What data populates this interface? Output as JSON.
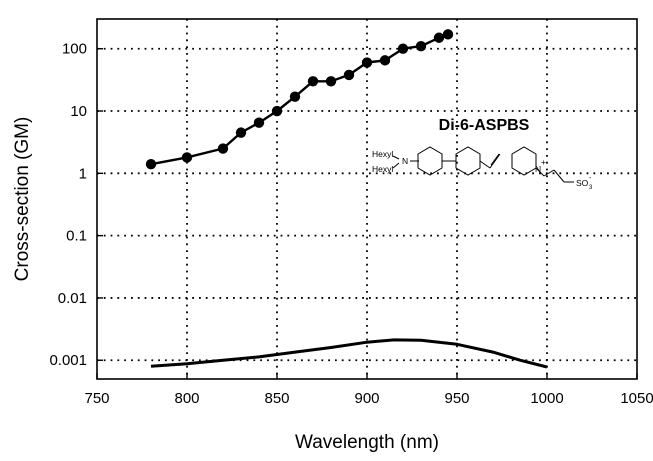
{
  "chart_data": {
    "type": "line",
    "xlabel": "Wavelength (nm)",
    "ylabel": "Cross-section (GM)",
    "xlim": [
      750,
      1050
    ],
    "ylim": [
      0.0005,
      300
    ],
    "yscale": "log",
    "grid": true,
    "x_ticks": [
      750,
      800,
      850,
      900,
      950,
      1000,
      1050
    ],
    "y_ticks": [
      0.001,
      0.01,
      0.1,
      1,
      10,
      100
    ],
    "x_tick_labels": [
      "750",
      "800",
      "850",
      "900",
      "950",
      "1000",
      "1050"
    ],
    "y_tick_labels": [
      "0.001",
      "0.01",
      "0.1",
      "1",
      "10",
      "100"
    ],
    "annotation": "Di-6-ASPBS",
    "molecule_labels": {
      "hexyl_top": "Hexyl",
      "hexyl_bottom": "Hexyl",
      "amine": "N",
      "pyridinium": "N",
      "pyridinium_charge": "+",
      "sulfonate": "SO",
      "sulfonate_subscript": "3",
      "sulfonate_charge": "-"
    },
    "series": [
      {
        "style": "line-markers",
        "x": [
          780,
          800,
          820,
          830,
          840,
          850,
          860,
          870,
          880,
          890,
          900,
          910,
          920,
          930,
          940,
          945
        ],
        "y": [
          1.4,
          1.8,
          2.5,
          4.5,
          6.5,
          10,
          17,
          30,
          30,
          38,
          60,
          65,
          100,
          110,
          150,
          170
        ]
      },
      {
        "style": "line",
        "x": [
          780,
          800,
          820,
          840,
          860,
          880,
          900,
          915,
          930,
          950,
          970,
          985,
          1000
        ],
        "y": [
          0.0008,
          0.00088,
          0.001,
          0.00113,
          0.00135,
          0.0016,
          0.00195,
          0.00212,
          0.0021,
          0.0018,
          0.00135,
          0.001,
          0.00078
        ]
      }
    ]
  }
}
